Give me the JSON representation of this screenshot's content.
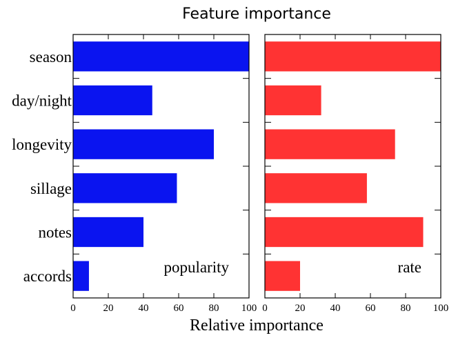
{
  "chart_data": {
    "type": "bar",
    "orientation": "horizontal",
    "title": "Feature importance",
    "xlabel": "Relative importance",
    "categories": [
      "season",
      "day/night",
      "longevity",
      "sillage",
      "notes",
      "accords"
    ],
    "xlim": [
      0,
      100
    ],
    "xticks": [
      "0",
      "20",
      "40",
      "60",
      "80",
      "100"
    ],
    "grid": false,
    "panels": [
      {
        "name": "popularity",
        "color": "#0a14f0",
        "values": [
          100,
          45,
          80,
          59,
          40,
          9
        ]
      },
      {
        "name": "rate",
        "color": "#ff3333",
        "values": [
          100,
          32,
          74,
          58,
          90,
          20
        ]
      }
    ]
  }
}
